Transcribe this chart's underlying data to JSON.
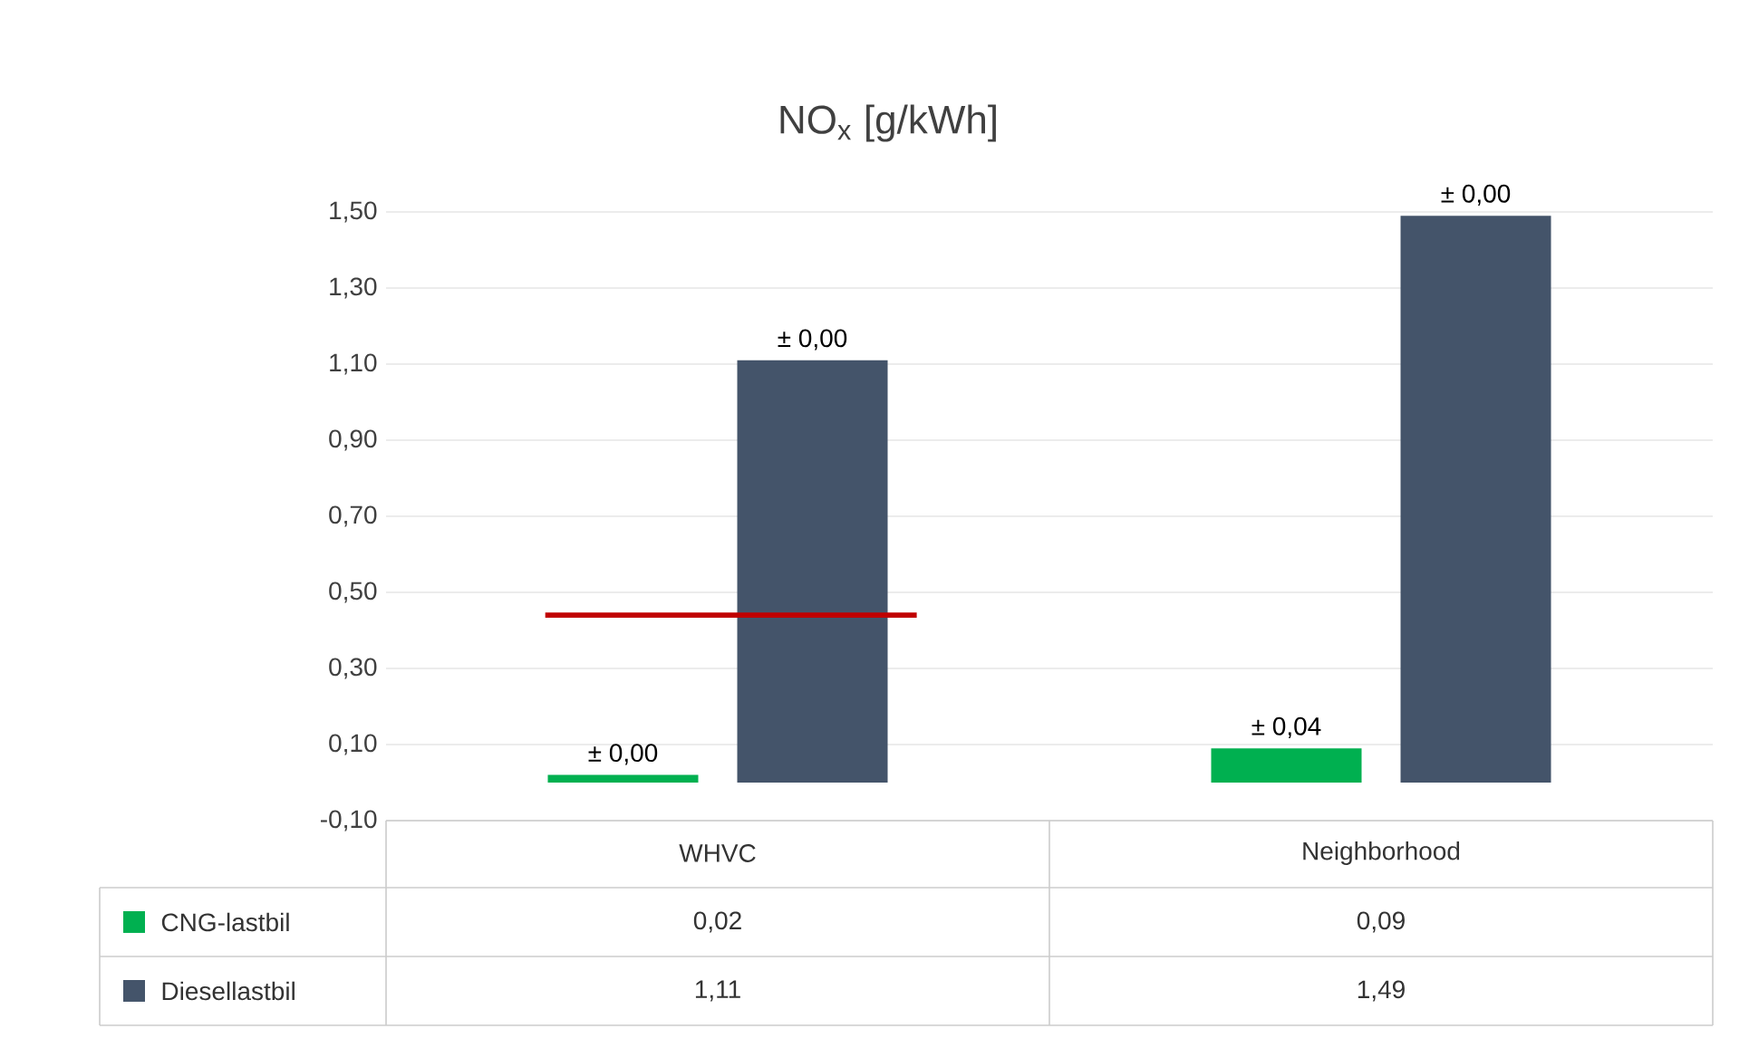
{
  "chart_data": {
    "type": "bar",
    "title": "NO$_{x}$ [g/kWh]",
    "categories": [
      "WHVC",
      "Neighborhood"
    ],
    "series": [
      {
        "name": "CNG-lastbil",
        "color": "#00b050",
        "values": [
          0.02,
          0.09
        ],
        "value_labels": [
          "0,02",
          "0,09"
        ]
      },
      {
        "name": "Diesellastbil",
        "color": "#44546a",
        "values": [
          1.11,
          1.49
        ],
        "value_labels": [
          "1,11",
          "1,49"
        ]
      }
    ],
    "annotations": [
      "± 0,00",
      "± 0,00",
      "± 0,04",
      "± 0,00"
    ],
    "ylim": [
      -0.1,
      1.5
    ],
    "yticks": [
      {
        "value": -0.1,
        "label": "-0,10"
      },
      {
        "value": 0.1,
        "label": "0,10"
      },
      {
        "value": 0.3,
        "label": "0,30"
      },
      {
        "value": 0.5,
        "label": "0,50"
      },
      {
        "value": 0.7,
        "label": "0,70"
      },
      {
        "value": 0.9,
        "label": "0,90"
      },
      {
        "value": 1.1,
        "label": "1,10"
      },
      {
        "value": 1.3,
        "label": "1,30"
      },
      {
        "value": 1.5,
        "label": "1,50"
      }
    ],
    "ref_lines": [
      {
        "axis": "y",
        "value": 0.44,
        "color": "#c00000"
      }
    ],
    "grid": "y",
    "legend": "bottom"
  }
}
